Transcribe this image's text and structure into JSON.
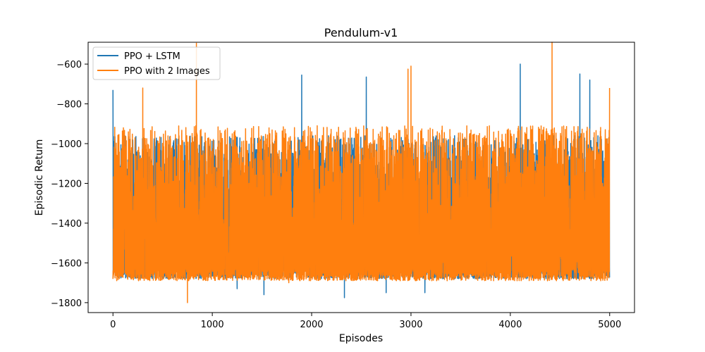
{
  "chart_data": {
    "type": "line",
    "title": "Pendulum-v1",
    "xlabel": "Episodes",
    "ylabel": "Episodic Return",
    "xlim": [
      -250,
      5250
    ],
    "ylim": [
      -1850,
      -490
    ],
    "xticks": [
      0,
      1000,
      2000,
      3000,
      4000,
      5000
    ],
    "xtick_labels": [
      "0",
      "1000",
      "2000",
      "3000",
      "4000",
      "5000"
    ],
    "yticks": [
      -1800,
      -1600,
      -1400,
      -1200,
      -1000,
      -800,
      -600
    ],
    "ytick_labels": [
      "−1800",
      "−1600",
      "−1400",
      "−1200",
      "−1000",
      "−800",
      "−600"
    ],
    "grid": false,
    "legend_position": "top-left",
    "series": [
      {
        "name": "PPO + LSTM",
        "color": "#1f77b4",
        "episodes": 5000,
        "typical_range": [
          -1680,
          -1000
        ],
        "peaks": [
          [
            0,
            -730
          ],
          [
            1900,
            -655
          ],
          [
            2550,
            -665
          ],
          [
            4100,
            -600
          ],
          [
            4700,
            -650
          ],
          [
            4800,
            -680
          ]
        ],
        "troughs": [
          [
            1250,
            -1730
          ],
          [
            1520,
            -1760
          ],
          [
            2330,
            -1775
          ],
          [
            2750,
            -1750
          ],
          [
            3140,
            -1750
          ]
        ]
      },
      {
        "name": "PPO with 2 Images",
        "color": "#ff7f0e",
        "episodes": 5000,
        "typical_range": [
          -1690,
          -950
        ],
        "peaks": [
          [
            840,
            -495
          ],
          [
            4420,
            -490
          ],
          [
            3000,
            -610
          ],
          [
            2970,
            -625
          ],
          [
            300,
            -720
          ],
          [
            5000,
            -720
          ]
        ],
        "troughs": [
          [
            750,
            -1800
          ],
          [
            1770,
            -1700
          ]
        ]
      }
    ]
  }
}
